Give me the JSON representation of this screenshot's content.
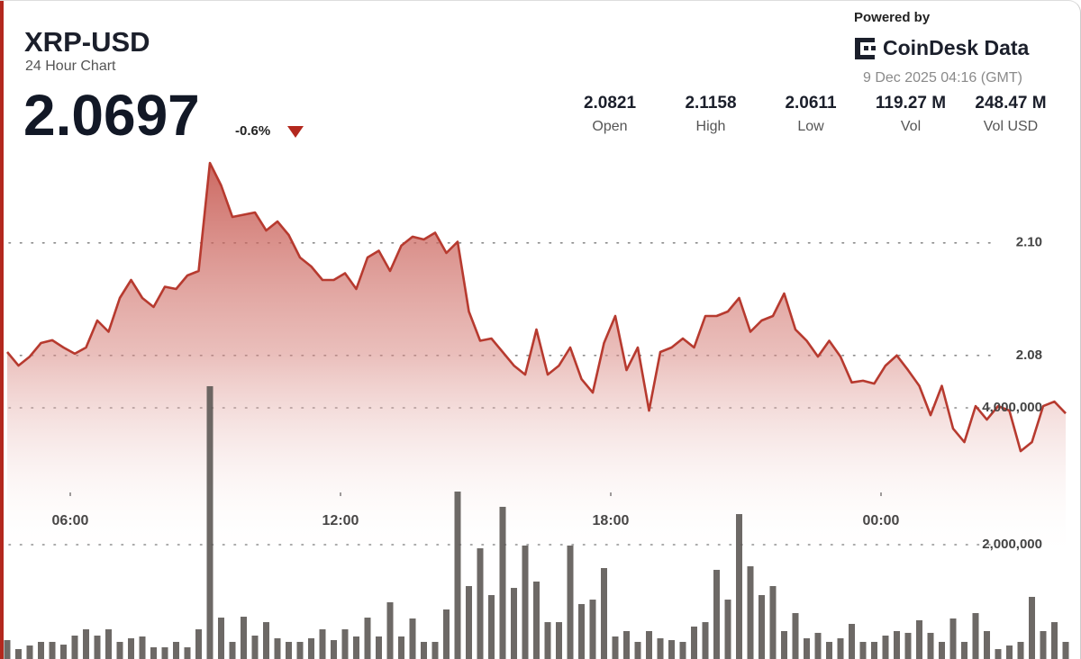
{
  "header": {
    "title": "XRP-USD",
    "subtitle": "24 Hour Chart",
    "price": "2.0697",
    "change": "-0.6%",
    "powered_by": "Powered by",
    "brand": "CoinDesk Data",
    "timestamp": "9 Dec 2025 04:16 (GMT)"
  },
  "stats": [
    {
      "value": "2.0821",
      "label": "Open"
    },
    {
      "value": "2.1158",
      "label": "High"
    },
    {
      "value": "2.0611",
      "label": "Low"
    },
    {
      "value": "119.27 M",
      "label": "Vol"
    },
    {
      "value": "248.47 M",
      "label": "Vol USD"
    }
  ],
  "chart_data": {
    "type": "line",
    "x": [
      4.6,
      4.85,
      5.1,
      5.35,
      5.6,
      5.85,
      6.1,
      6.35,
      6.6,
      6.85,
      7.1,
      7.35,
      7.6,
      7.85,
      8.1,
      8.35,
      8.6,
      8.85,
      9.1,
      9.35,
      9.6,
      9.85,
      10.1,
      10.35,
      10.6,
      10.85,
      11.1,
      11.35,
      11.6,
      11.85,
      12.1,
      12.35,
      12.6,
      12.85,
      13.1,
      13.35,
      13.6,
      13.85,
      14.1,
      14.35,
      14.6,
      14.85,
      15.1,
      15.35,
      15.6,
      15.85,
      16.1,
      16.35,
      16.6,
      16.85,
      17.1,
      17.35,
      17.6,
      17.85,
      18.1,
      18.35,
      18.6,
      18.85,
      19.1,
      19.35,
      19.6,
      19.85,
      20.1,
      20.35,
      20.6,
      20.85,
      21.1,
      21.35,
      21.6,
      21.85,
      22.1,
      22.35,
      22.6,
      22.85,
      23.1,
      23.35,
      23.6,
      23.85,
      24.1,
      24.35,
      24.6,
      24.85,
      25.1,
      25.35,
      25.6,
      25.85,
      26.1,
      26.35,
      26.6,
      26.85,
      27.1,
      27.35,
      27.6,
      27.85,
      28.1
    ],
    "series": [
      {
        "type": "line",
        "color": "#b73a2f",
        "values": [
          2.0806,
          2.0782,
          2.0798,
          2.0822,
          2.0827,
          2.0814,
          2.0803,
          2.0814,
          2.0862,
          2.0842,
          2.0902,
          2.0934,
          2.0902,
          2.0886,
          2.0922,
          2.0918,
          2.0942,
          2.095,
          2.1142,
          2.1102,
          2.1046,
          2.105,
          2.1054,
          2.1022,
          2.1038,
          2.1014,
          2.0974,
          2.0958,
          2.0934,
          2.0934,
          2.0946,
          2.0918,
          2.0974,
          2.0986,
          2.095,
          2.0995,
          2.1011,
          2.1006,
          2.1018,
          2.0982,
          2.1002,
          2.0878,
          2.0826,
          2.083,
          2.0806,
          2.0782,
          2.0766,
          2.0846,
          2.0766,
          2.0782,
          2.0814,
          2.0758,
          2.0734,
          2.0822,
          2.087,
          2.0774,
          2.0814,
          2.0702,
          2.0806,
          2.0814,
          2.083,
          2.0814,
          2.087,
          2.087,
          2.0878,
          2.0902,
          2.0842,
          2.0862,
          2.087,
          2.091,
          2.0846,
          2.0826,
          2.0798,
          2.0826,
          2.0798,
          2.0752,
          2.0755,
          2.075,
          2.0782,
          2.08,
          2.0774,
          2.0746,
          2.0694,
          2.0746,
          2.067,
          2.0646,
          2.071,
          2.0686,
          2.071,
          2.0702,
          2.063,
          2.0646,
          2.071,
          2.0718,
          2.0697
        ]
      },
      {
        "type": "bar",
        "axis": "y2",
        "color": "#5d5955",
        "values": [
          605000,
          474000,
          526000,
          579000,
          579000,
          539000,
          671000,
          763000,
          671000,
          763000,
          579000,
          632000,
          658000,
          500000,
          500000,
          579000,
          500000,
          763000,
          4316000,
          934000,
          579000,
          947000,
          671000,
          868000,
          632000,
          579000,
          579000,
          632000,
          763000,
          605000,
          763000,
          658000,
          934000,
          658000,
          1158000,
          658000,
          921000,
          579000,
          579000,
          1053000,
          2776000,
          1395000,
          1947000,
          1263000,
          2553000,
          1368000,
          1987000,
          1461000,
          868000,
          868000,
          1987000,
          1132000,
          1197000,
          1658000,
          658000,
          737000,
          579000,
          737000,
          632000,
          605000,
          579000,
          803000,
          868000,
          1632000,
          1197000,
          2447000,
          1684000,
          1263000,
          1395000,
          737000,
          1000000,
          632000,
          711000,
          579000,
          632000,
          842000,
          579000,
          579000,
          671000,
          737000,
          711000,
          895000,
          711000,
          579000,
          921000,
          579000,
          1000000,
          737000,
          474000,
          526000,
          579000,
          1237000,
          737000,
          868000,
          579000
        ]
      }
    ],
    "xlim": [
      4.54,
      28.24
    ],
    "xticks": [
      {
        "value": 6,
        "label": "06:00"
      },
      {
        "value": 12,
        "label": "12:00"
      },
      {
        "value": 18,
        "label": "18:00"
      },
      {
        "value": 24,
        "label": "00:00"
      }
    ],
    "ylim": [
      2.0259,
      2.1166
    ],
    "yticks": [
      2.08,
      {
        "value": 2.1,
        "label": "2.10"
      }
    ],
    "y2lim": [
      315800,
      7776300
    ],
    "y2ticks": [
      {
        "value": 2000000,
        "label": "2,000,000"
      },
      {
        "value": 4000000,
        "label": "4,000,000"
      }
    ],
    "grid": true
  }
}
